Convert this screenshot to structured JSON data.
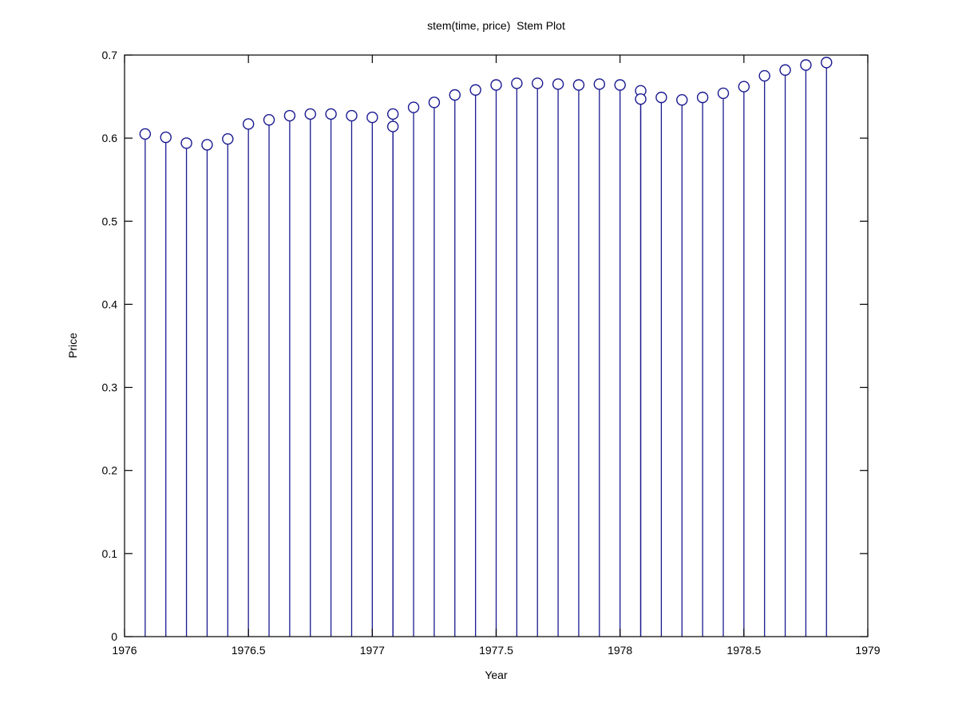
{
  "figure": {
    "title": "stem(time, price)  Stem Plot",
    "xlabel": "Year",
    "ylabel": "Price"
  },
  "chart_data": {
    "type": "stem",
    "title": "stem(time, price)  Stem Plot",
    "xlabel": "Year",
    "ylabel": "Price",
    "xlim": [
      1976,
      1979
    ],
    "ylim": [
      0,
      0.7
    ],
    "x_tick_values": [
      1976,
      1976.5,
      1977,
      1977.5,
      1978,
      1978.5,
      1979
    ],
    "x_tick_labels": [
      "1976",
      "1976.5",
      "1977",
      "1977.5",
      "1978",
      "1978.5",
      "1979"
    ],
    "y_tick_values": [
      0,
      0.1,
      0.2,
      0.3,
      0.4,
      0.5,
      0.6,
      0.7
    ],
    "y_tick_labels": [
      "0",
      "0.1",
      "0.2",
      "0.3",
      "0.4",
      "0.5",
      "0.6",
      "0.7"
    ],
    "grid": false,
    "legend": null,
    "marker": "open-circle",
    "stem_color": "#1a1a90",
    "axis_color": "#000000",
    "background_color": "#ffffff",
    "points": [
      {
        "x": 1976.0833,
        "y": 0.605
      },
      {
        "x": 1976.1667,
        "y": 0.601
      },
      {
        "x": 1976.25,
        "y": 0.594
      },
      {
        "x": 1976.3333,
        "y": 0.592
      },
      {
        "x": 1976.4167,
        "y": 0.599
      },
      {
        "x": 1976.5,
        "y": 0.617
      },
      {
        "x": 1976.5833,
        "y": 0.622
      },
      {
        "x": 1976.6667,
        "y": 0.627
      },
      {
        "x": 1976.75,
        "y": 0.629
      },
      {
        "x": 1976.8333,
        "y": 0.629
      },
      {
        "x": 1976.9167,
        "y": 0.627
      },
      {
        "x": 1977.0,
        "y": 0.625
      },
      {
        "x": 1977.0833,
        "y": 0.629
      },
      {
        "x": 1977.0833,
        "y": 0.614
      },
      {
        "x": 1977.1667,
        "y": 0.637
      },
      {
        "x": 1977.25,
        "y": 0.643
      },
      {
        "x": 1977.3333,
        "y": 0.652
      },
      {
        "x": 1977.4167,
        "y": 0.658
      },
      {
        "x": 1977.5,
        "y": 0.664
      },
      {
        "x": 1977.5833,
        "y": 0.666
      },
      {
        "x": 1977.6667,
        "y": 0.666
      },
      {
        "x": 1977.75,
        "y": 0.665
      },
      {
        "x": 1977.8333,
        "y": 0.664
      },
      {
        "x": 1977.9167,
        "y": 0.665
      },
      {
        "x": 1978.0,
        "y": 0.664
      },
      {
        "x": 1978.0833,
        "y": 0.657
      },
      {
        "x": 1978.0833,
        "y": 0.647
      },
      {
        "x": 1978.1667,
        "y": 0.649
      },
      {
        "x": 1978.25,
        "y": 0.646
      },
      {
        "x": 1978.3333,
        "y": 0.649
      },
      {
        "x": 1978.4167,
        "y": 0.654
      },
      {
        "x": 1978.5,
        "y": 0.662
      },
      {
        "x": 1978.5833,
        "y": 0.675
      },
      {
        "x": 1978.6667,
        "y": 0.682
      },
      {
        "x": 1978.75,
        "y": 0.688
      },
      {
        "x": 1978.8333,
        "y": 0.691
      }
    ]
  }
}
